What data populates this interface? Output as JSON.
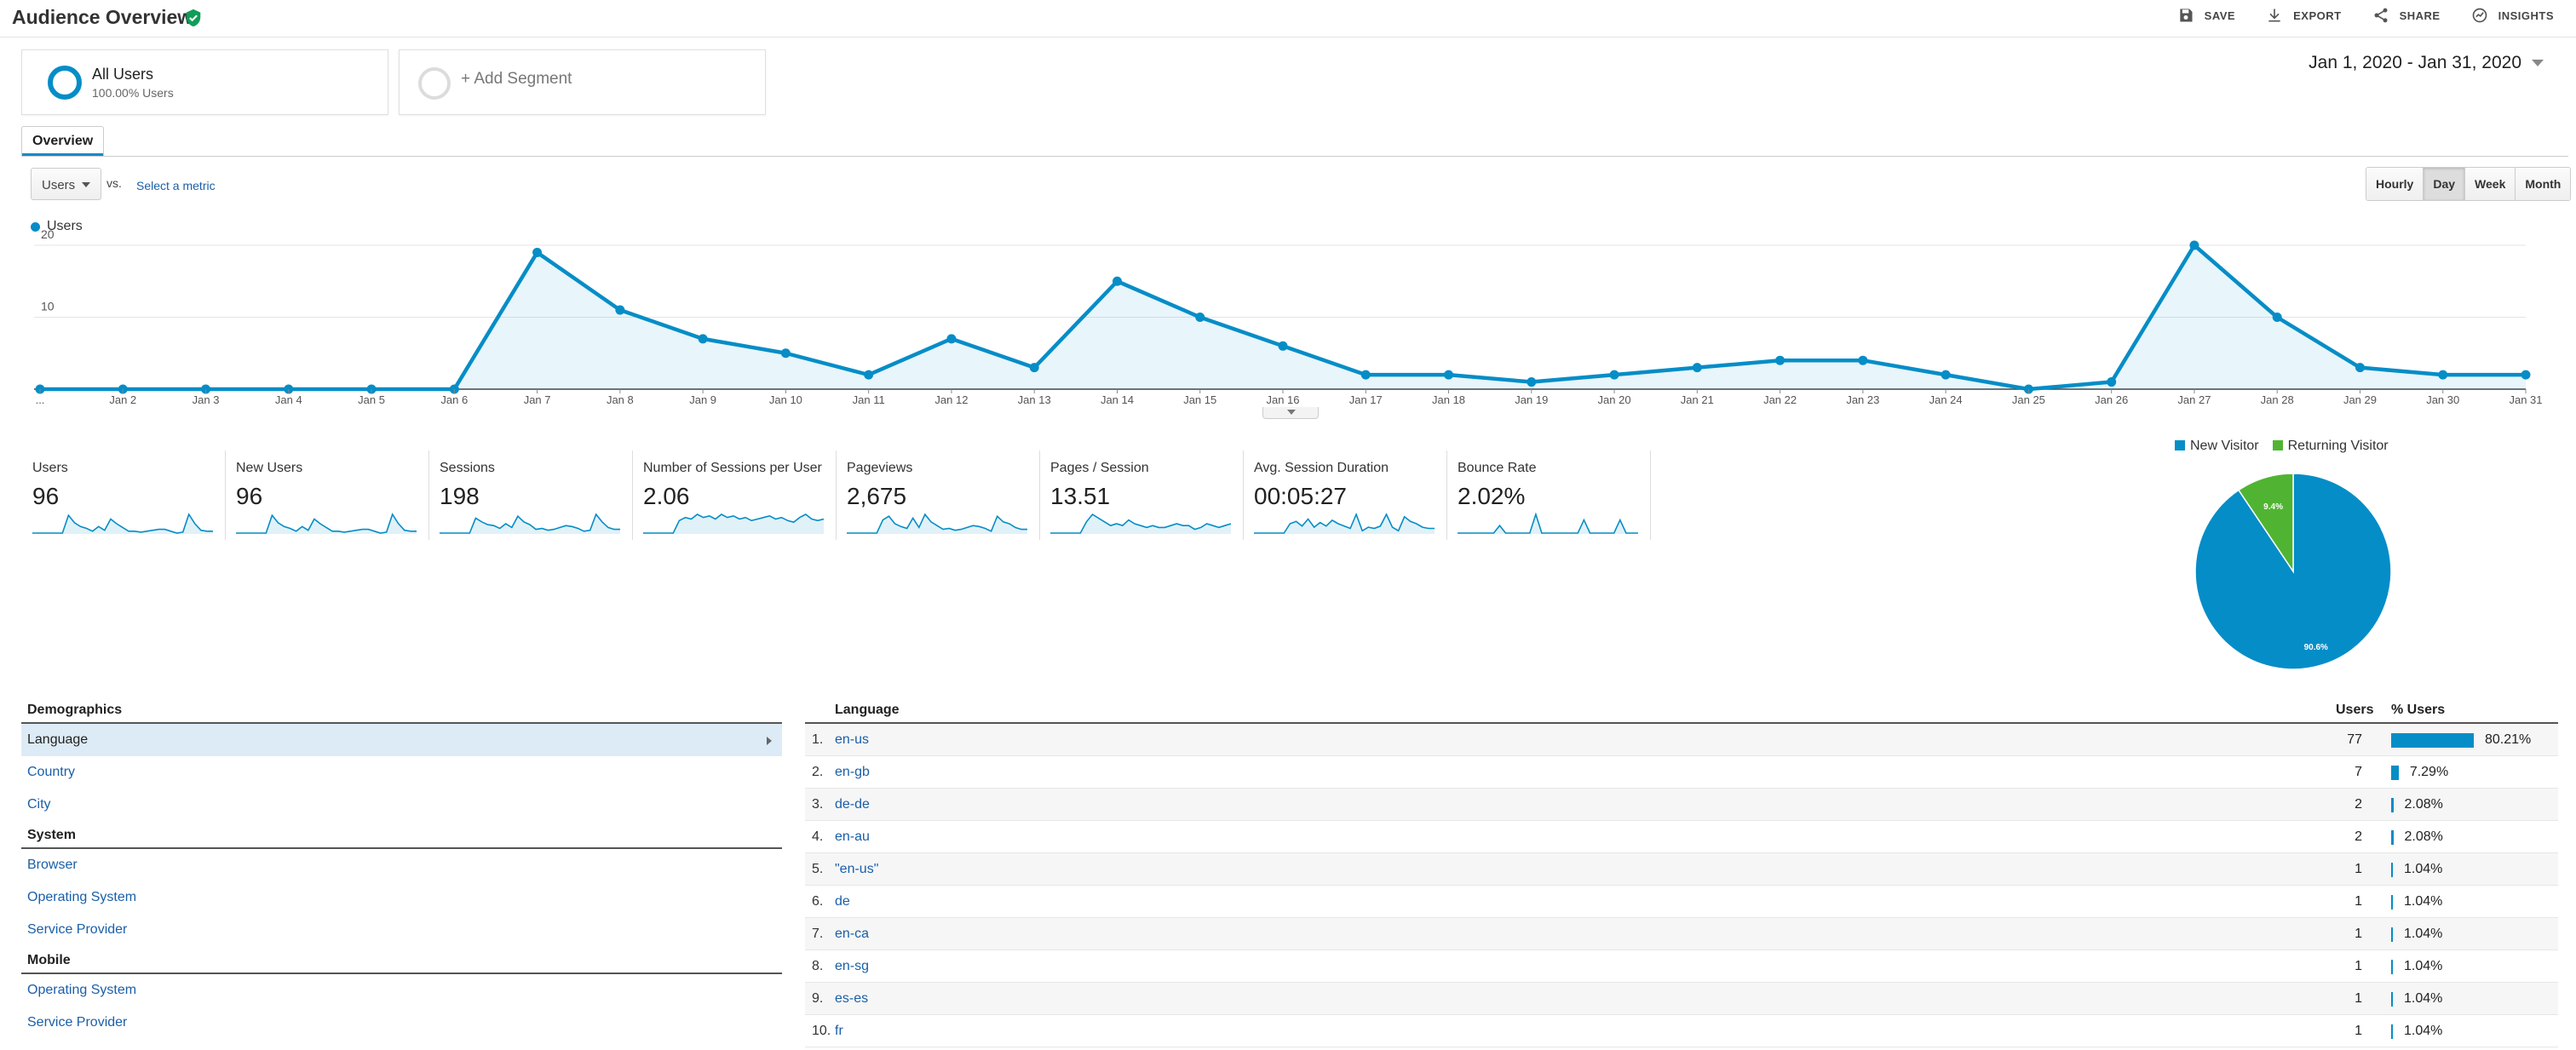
{
  "header": {
    "title": "Audience Overview",
    "actions": {
      "save": "SAVE",
      "export": "EXPORT",
      "share": "SHARE",
      "insights": "INSIGHTS"
    }
  },
  "segments": {
    "all_users": {
      "name": "All Users",
      "sub": "100.00% Users"
    },
    "add_segment": "+ Add Segment"
  },
  "date_range": "Jan 1, 2020 - Jan 31, 2020",
  "tabs": [
    "Overview"
  ],
  "metric_selector": {
    "value": "Users",
    "vs": "vs.",
    "select_metric": "Select a metric"
  },
  "granularity": {
    "options": [
      "Hourly",
      "Day",
      "Week",
      "Month"
    ],
    "active": "Day"
  },
  "colors": {
    "accent": "#058dc7",
    "returning": "#50b432",
    "link": "#1a5fa8"
  },
  "chart_data": {
    "type": "line",
    "series": [
      {
        "name": "Users",
        "values": [
          0,
          0,
          0,
          0,
          0,
          0,
          19,
          11,
          7,
          5,
          2,
          7,
          3,
          15,
          10,
          6,
          2,
          2,
          1,
          2,
          3,
          4,
          4,
          2,
          0,
          1,
          20,
          10,
          3,
          2,
          2
        ]
      }
    ],
    "x": [
      "Jan 1",
      "Jan 2",
      "Jan 3",
      "Jan 4",
      "Jan 5",
      "Jan 6",
      "Jan 7",
      "Jan 8",
      "Jan 9",
      "Jan 10",
      "Jan 11",
      "Jan 12",
      "Jan 13",
      "Jan 14",
      "Jan 15",
      "Jan 16",
      "Jan 17",
      "Jan 18",
      "Jan 19",
      "Jan 20",
      "Jan 21",
      "Jan 22",
      "Jan 23",
      "Jan 24",
      "Jan 25",
      "Jan 26",
      "Jan 27",
      "Jan 28",
      "Jan 29",
      "Jan 30",
      "Jan 31"
    ],
    "tick_labels": [
      "...",
      "Jan 2",
      "Jan 3",
      "Jan 4",
      "Jan 5",
      "Jan 6",
      "Jan 7",
      "Jan 8",
      "Jan 9",
      "Jan 10",
      "Jan 11",
      "Jan 12",
      "Jan 13",
      "Jan 14",
      "Jan 15",
      "Jan 16",
      "Jan 17",
      "Jan 18",
      "Jan 19",
      "Jan 20",
      "Jan 21",
      "Jan 22",
      "Jan 23",
      "Jan 24",
      "Jan 25",
      "Jan 26",
      "Jan 27",
      "Jan 28",
      "Jan 29",
      "Jan 30",
      "Jan 31"
    ],
    "y_ticks": [
      "10",
      "20"
    ],
    "ylim": [
      0,
      20
    ],
    "grid": true
  },
  "metrics": [
    {
      "label": "Users",
      "value": "96",
      "spark": [
        0,
        0,
        0,
        0,
        0,
        0,
        19,
        11,
        7,
        5,
        2,
        7,
        3,
        15,
        10,
        6,
        2,
        2,
        1,
        2,
        3,
        4,
        4,
        2,
        0,
        1,
        20,
        10,
        3,
        2,
        2
      ]
    },
    {
      "label": "New Users",
      "value": "96",
      "spark": [
        0,
        0,
        0,
        0,
        0,
        0,
        19,
        11,
        7,
        5,
        2,
        7,
        3,
        15,
        10,
        6,
        2,
        2,
        1,
        2,
        3,
        4,
        4,
        2,
        0,
        1,
        20,
        10,
        3,
        2,
        2
      ]
    },
    {
      "label": "Sessions",
      "value": "198",
      "spark": [
        0,
        0,
        0,
        0,
        0,
        0,
        16,
        12,
        9,
        8,
        5,
        10,
        6,
        18,
        12,
        9,
        4,
        5,
        3,
        4,
        6,
        8,
        7,
        5,
        2,
        3,
        20,
        12,
        6,
        4,
        4
      ]
    },
    {
      "label": "Number of Sessions per User",
      "value": "2.06",
      "spark": [
        0,
        0,
        0,
        0,
        0,
        0,
        8,
        10,
        9,
        12,
        10,
        11,
        9,
        12,
        10,
        11,
        9,
        10,
        8,
        9,
        10,
        11,
        9,
        10,
        8,
        7,
        10,
        12,
        9,
        8,
        9
      ]
    },
    {
      "label": "Pageviews",
      "value": "2,675",
      "spark": [
        0,
        0,
        0,
        0,
        0,
        0,
        14,
        18,
        10,
        7,
        5,
        16,
        6,
        20,
        12,
        8,
        4,
        5,
        3,
        4,
        6,
        8,
        7,
        5,
        2,
        18,
        12,
        10,
        6,
        4,
        4
      ]
    },
    {
      "label": "Pages / Session",
      "value": "13.51",
      "spark": [
        0,
        0,
        0,
        0,
        0,
        0,
        6,
        10,
        8,
        6,
        4,
        5,
        4,
        7,
        5,
        4,
        3,
        4,
        3,
        3,
        4,
        5,
        4,
        4,
        2,
        3,
        5,
        4,
        3,
        4,
        5
      ]
    },
    {
      "label": "Avg. Session Duration",
      "value": "00:05:27",
      "spark": [
        0,
        0,
        0,
        0,
        0,
        0,
        8,
        10,
        6,
        12,
        5,
        9,
        6,
        11,
        8,
        6,
        4,
        16,
        2,
        5,
        4,
        6,
        16,
        5,
        2,
        14,
        10,
        8,
        5,
        4,
        4
      ]
    },
    {
      "label": "Bounce Rate",
      "value": "2.02%",
      "spark": [
        0,
        0,
        0,
        0,
        0,
        0,
        0,
        8,
        0,
        0,
        0,
        0,
        0,
        20,
        0,
        0,
        0,
        0,
        0,
        0,
        0,
        14,
        0,
        0,
        0,
        0,
        0,
        14,
        0,
        0,
        0
      ]
    }
  ],
  "pie": {
    "legend": [
      "New Visitor",
      "Returning Visitor"
    ],
    "slices": [
      {
        "name": "New Visitor",
        "value": 90.6,
        "label": "90.6%",
        "color": "#058dc7"
      },
      {
        "name": "Returning Visitor",
        "value": 9.4,
        "label": "9.4%",
        "color": "#50b432"
      }
    ]
  },
  "demographics": {
    "groups": [
      {
        "title": "Demographics",
        "items": [
          "Language",
          "Country",
          "City"
        ]
      },
      {
        "title": "System",
        "items": [
          "Browser",
          "Operating System",
          "Service Provider"
        ]
      },
      {
        "title": "Mobile",
        "items": [
          "Operating System",
          "Service Provider"
        ]
      }
    ],
    "active": "Language"
  },
  "language_table": {
    "headers": {
      "language": "Language",
      "users": "Users",
      "pct_users": "% Users"
    },
    "rows": [
      {
        "idx": "1.",
        "name": "en-us",
        "users": "77",
        "pct": "80.21%",
        "share": 80.21
      },
      {
        "idx": "2.",
        "name": "en-gb",
        "users": "7",
        "pct": "7.29%",
        "share": 7.29
      },
      {
        "idx": "3.",
        "name": "de-de",
        "users": "2",
        "pct": "2.08%",
        "share": 2.08
      },
      {
        "idx": "4.",
        "name": "en-au",
        "users": "2",
        "pct": "2.08%",
        "share": 2.08
      },
      {
        "idx": "5.",
        "name": "\"en-us\"",
        "users": "1",
        "pct": "1.04%",
        "share": 1.04
      },
      {
        "idx": "6.",
        "name": "de",
        "users": "1",
        "pct": "1.04%",
        "share": 1.04
      },
      {
        "idx": "7.",
        "name": "en-ca",
        "users": "1",
        "pct": "1.04%",
        "share": 1.04
      },
      {
        "idx": "8.",
        "name": "en-sg",
        "users": "1",
        "pct": "1.04%",
        "share": 1.04
      },
      {
        "idx": "9.",
        "name": "es-es",
        "users": "1",
        "pct": "1.04%",
        "share": 1.04
      },
      {
        "idx": "10.",
        "name": "fr",
        "users": "1",
        "pct": "1.04%",
        "share": 1.04
      }
    ]
  }
}
